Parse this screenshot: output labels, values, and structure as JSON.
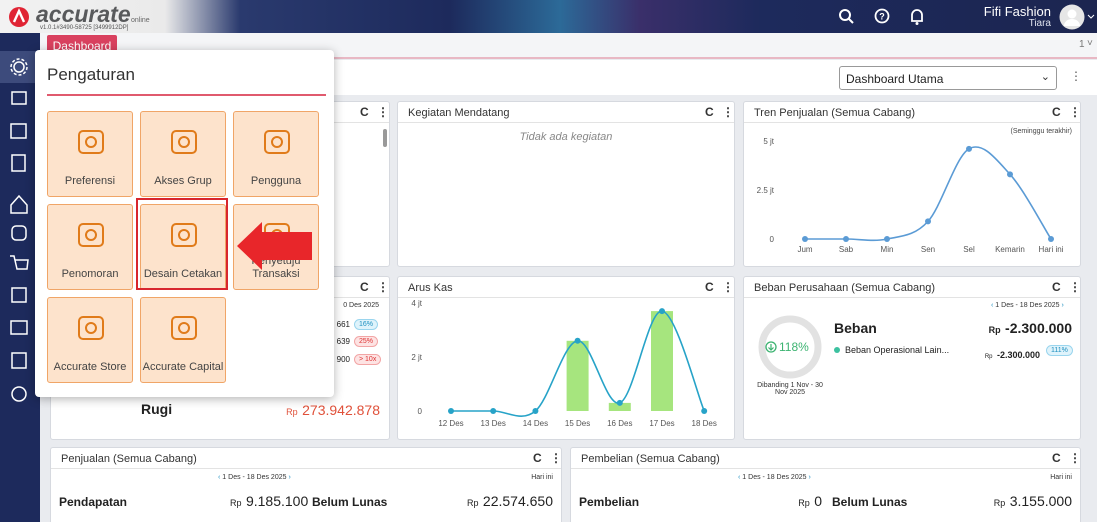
{
  "topbar": {
    "logo": "accurate",
    "logo_sub": "online",
    "version": "v1.0.1#3490-58725 [3499912DP]",
    "company": "Fifi Fashion",
    "user": "Tiara"
  },
  "tab": {
    "label": "Dashboard",
    "page": "1"
  },
  "dashboard_select": "Dashboard Utama",
  "settings": {
    "title": "Pengaturan",
    "items": [
      "Preferensi",
      "Akses Grup",
      "Pengguna",
      "Penomoran",
      "Desain Cetakan",
      "Penyetuju Transaksi",
      "Accurate Store",
      "Accurate Capital"
    ]
  },
  "widgets": {
    "left_mid": {
      "date": "0 Des 2025",
      "rows": [
        [
          "661",
          "16%"
        ],
        [
          "639",
          "25%"
        ],
        [
          "900",
          "> 10x"
        ]
      ],
      "label": "Rugi",
      "currency": "Rp",
      "amount": "273.942.878"
    },
    "kegiatan": {
      "title": "Kegiatan Mendatang",
      "empty": "Tidak ada kegiatan"
    },
    "beban": {
      "title": "Beban Perusahaan (Semua Cabang)",
      "period": "1 Des - 18 Des 2025",
      "percent": "118%",
      "compare": "Dibanding 1 Nov - 30 Nov 2025",
      "label": "Beban",
      "currency": "Rp",
      "amount": "-2.300.000",
      "item": "Beban Operasional Lain...",
      "item_currency": "Rp",
      "item_amount": "-2.300.000",
      "item_percent": "111%"
    },
    "penjualan": {
      "title": "Penjualan (Semua Cabang)",
      "period": "1 Des - 18 Des 2025",
      "range": "Hari ini",
      "label": "Pendapatan",
      "currency": "Rp",
      "amount": "9.185.100",
      "label2": "Belum Lunas",
      "currency2": "Rp",
      "amount2": "22.574.650"
    },
    "pembelian": {
      "title": "Pembelian (Semua Cabang)",
      "period": "1 Des - 18 Des 2025",
      "range": "Hari ini",
      "label": "Pembelian",
      "currency": "Rp",
      "amount": "0",
      "label2": "Belum Lunas",
      "currency2": "Rp",
      "amount2": "3.155.000"
    }
  },
  "chart_data": [
    {
      "type": "line",
      "title": "Tren Penjualan (Semua Cabang)",
      "subtitle": "(Seminggu terakhir)",
      "categories": [
        "Jum",
        "Sab",
        "Min",
        "Sen",
        "Sel",
        "Kemarin",
        "Hari ini"
      ],
      "series": [
        {
          "color": "#5b9bd5",
          "values": [
            0,
            0,
            0,
            0.9,
            4.6,
            3.3,
            0
          ]
        }
      ],
      "ylim": [
        0,
        5
      ],
      "yticks": [
        0,
        {
          "value": 2.5,
          "label": "2.5 jt"
        },
        {
          "value": 5,
          "label": "5 jt"
        }
      ]
    },
    {
      "type": "combo",
      "title": "Arus Kas",
      "categories": [
        "12 Des",
        "13 Des",
        "14 Des",
        "15 Des",
        "16 Des",
        "17 Des",
        "18 Des"
      ],
      "series": [
        {
          "type": "bar",
          "color": "#a6e57e",
          "values": [
            0,
            0,
            0,
            2.6,
            0.3,
            3.7,
            0
          ]
        },
        {
          "type": "line",
          "color": "#27a3c8",
          "values": [
            0,
            0,
            0,
            2.6,
            0.3,
            3.7,
            0
          ]
        }
      ],
      "ylim": [
        0,
        4
      ],
      "yticks": [
        0,
        {
          "value": 2,
          "label": "2 jt"
        },
        {
          "value": 4,
          "label": "4 jt"
        }
      ]
    }
  ]
}
